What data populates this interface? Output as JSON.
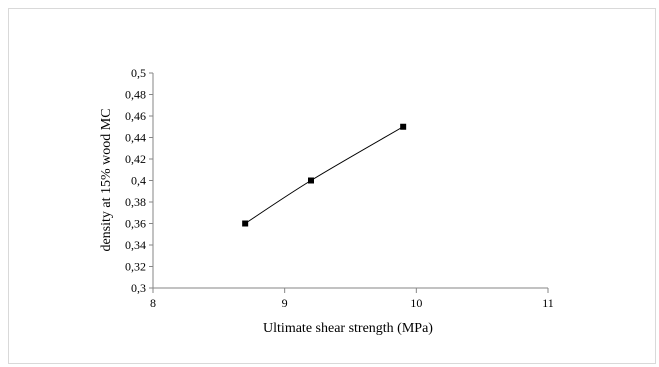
{
  "chart_data": {
    "type": "scatter",
    "title": "",
    "xlabel": "Ultimate shear strength (MPa)",
    "ylabel": "density at 15% wood MC",
    "xlim": [
      8,
      11
    ],
    "ylim": [
      0.3,
      0.5
    ],
    "x_ticks": [
      "8",
      "9",
      "10",
      "11"
    ],
    "y_ticks": [
      "0,3",
      "0,32",
      "0,34",
      "0,36",
      "0,38",
      "0,4",
      "0,42",
      "0,44",
      "0,46",
      "0,48",
      "0,5"
    ],
    "grid": false,
    "legend": "none",
    "series": [
      {
        "marker": "square",
        "line": "smooth",
        "color": "#000000",
        "points": [
          {
            "x": 8.7,
            "y": 0.36
          },
          {
            "x": 9.2,
            "y": 0.4
          },
          {
            "x": 9.9,
            "y": 0.45
          }
        ]
      }
    ]
  }
}
